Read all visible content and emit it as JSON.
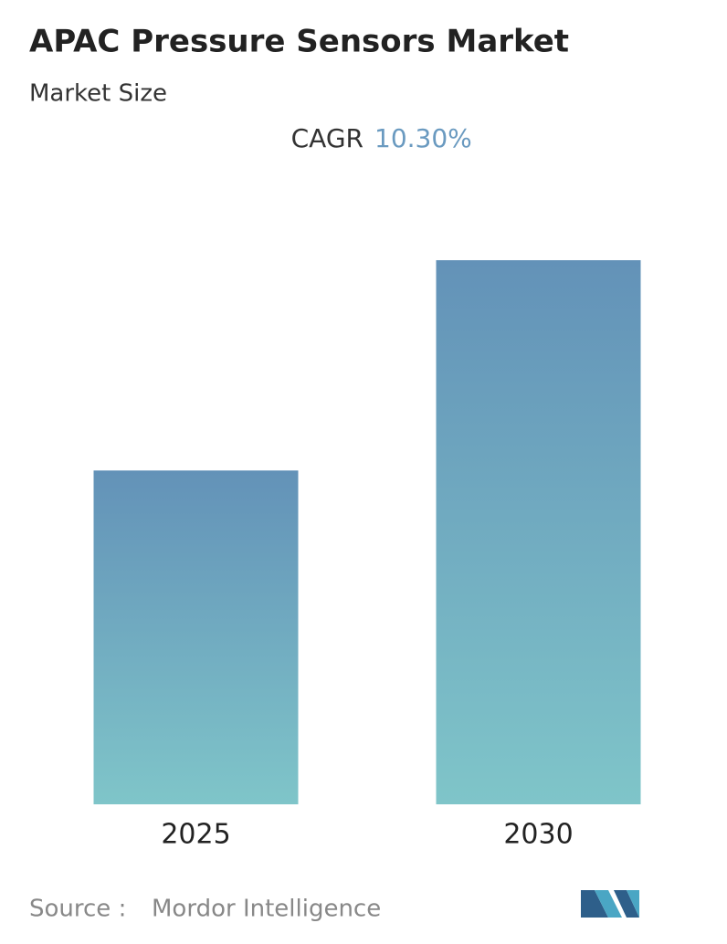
{
  "chart_data": {
    "type": "bar",
    "title": "APAC Pressure Sensors Market",
    "subtitle": "Market Size",
    "cagr_label": "CAGR",
    "cagr_value": "10.30%",
    "categories": [
      "2025",
      "2030"
    ],
    "values": [
      1,
      1.63
    ],
    "color": [
      "#6392b8",
      "#7fc5c9"
    ],
    "source_label": "Source :",
    "source": "Mordor Intelligence"
  }
}
